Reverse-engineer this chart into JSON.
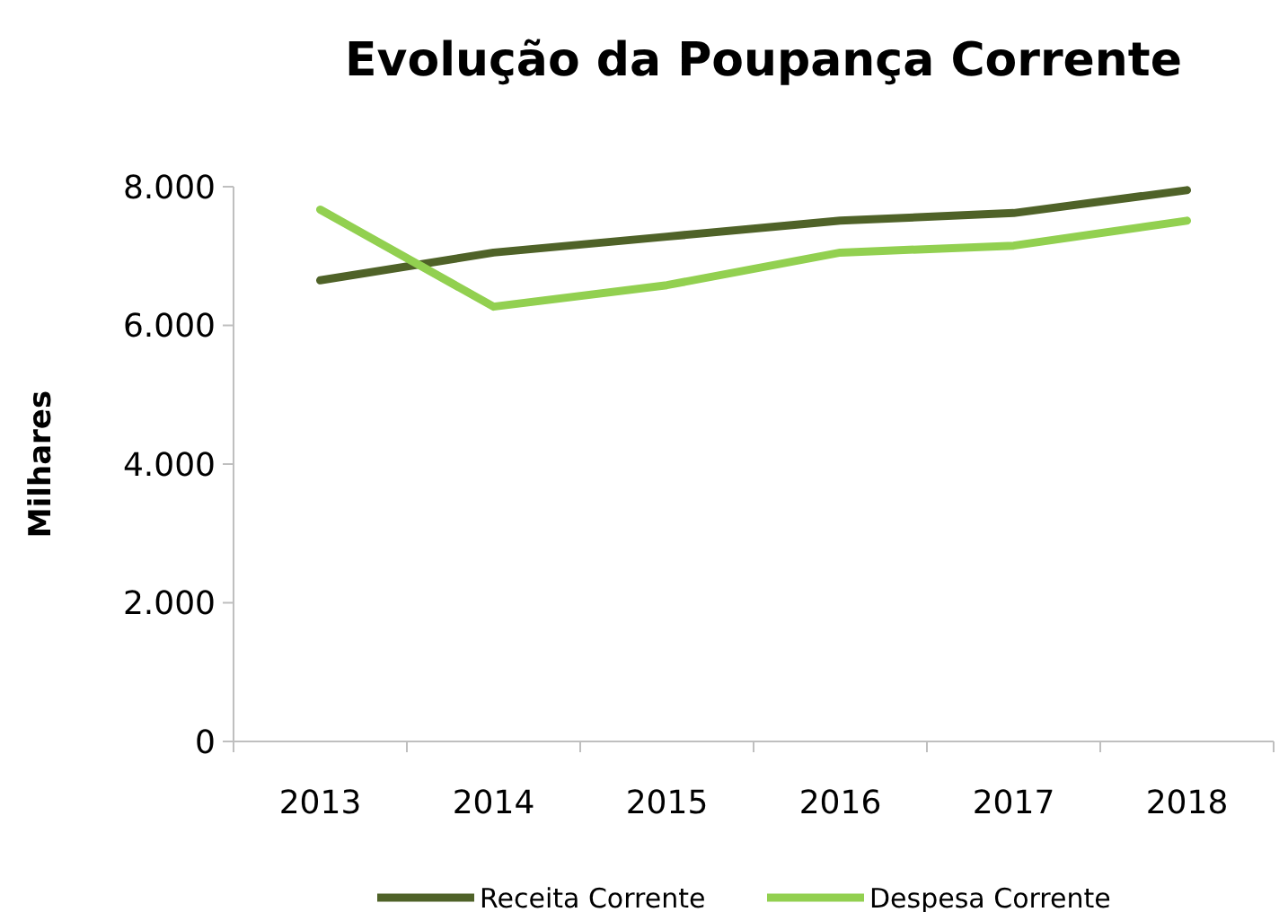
{
  "chart_data": {
    "type": "line",
    "title": "Evolução da Poupança Corrente",
    "ylabel": "Milhares",
    "categories": [
      "2013",
      "2014",
      "2015",
      "2016",
      "2017",
      "2018"
    ],
    "series": [
      {
        "name": "Receita Corrente",
        "color": "#4f6228",
        "values": [
          6650,
          7050,
          7280,
          7510,
          7620,
          7950
        ]
      },
      {
        "name": "Despesa Corrente",
        "color": "#92d050",
        "values": [
          7670,
          6270,
          6580,
          7050,
          7150,
          7510
        ]
      }
    ],
    "ylim": [
      0,
      8000
    ],
    "yticks": [
      {
        "value": 0,
        "label": "0"
      },
      {
        "value": 2000,
        "label": "2.000"
      },
      {
        "value": 4000,
        "label": "4.000"
      },
      {
        "value": 6000,
        "label": "6.000"
      },
      {
        "value": 8000,
        "label": "8.000"
      }
    ],
    "grid": false,
    "legend": "bottom",
    "marker": "none",
    "line_style": "solid"
  }
}
